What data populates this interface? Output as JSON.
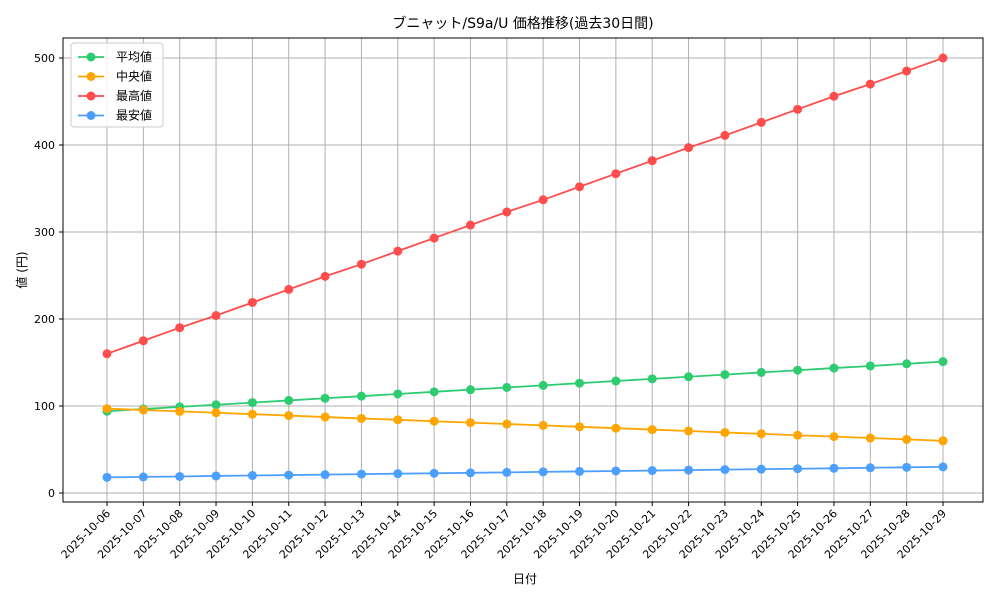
{
  "chart_data": {
    "type": "line",
    "title": "ブニャット/S9a/U 価格推移(過去30日間)",
    "xlabel": "日付",
    "ylabel": "値 (円)",
    "ylim": [
      -6,
      523
    ],
    "yticks": [
      0,
      100,
      200,
      300,
      400,
      500
    ],
    "grid": true,
    "legend_position": "top-left",
    "x": [
      "2025-10-06",
      "2025-10-07",
      "2025-10-08",
      "2025-10-09",
      "2025-10-10",
      "2025-10-11",
      "2025-10-12",
      "2025-10-13",
      "2025-10-14",
      "2025-10-15",
      "2025-10-16",
      "2025-10-17",
      "2025-10-18",
      "2025-10-19",
      "2025-10-20",
      "2025-10-21",
      "2025-10-22",
      "2025-10-23",
      "2025-10-24",
      "2025-10-25",
      "2025-10-26",
      "2025-10-27",
      "2025-10-28",
      "2025-10-29"
    ],
    "series": [
      {
        "name": "平均値",
        "color": "#2ecc71",
        "values": [
          94,
          96.5,
          99,
          101.4,
          103.9,
          106.4,
          108.9,
          111.3,
          113.8,
          116.3,
          118.8,
          121.3,
          123.7,
          126.2,
          128.7,
          131.2,
          133.6,
          136.1,
          138.6,
          141.1,
          143.6,
          146,
          148.5,
          151
        ]
      },
      {
        "name": "中央値",
        "color": "#ffa500",
        "values": [
          97,
          95.4,
          93.8,
          92.2,
          90.6,
          89,
          87.3,
          85.7,
          84.1,
          82.5,
          80.9,
          79.3,
          77.7,
          76.1,
          74.5,
          72.9,
          71.3,
          69.6,
          68,
          66.4,
          64.8,
          63.2,
          61.6,
          60
        ]
      },
      {
        "name": "最高値",
        "color": "#ff4d4d",
        "values": [
          160,
          175,
          190,
          204,
          219,
          234,
          249,
          263,
          278,
          293,
          308,
          323,
          337,
          352,
          367,
          382,
          397,
          411,
          426,
          441,
          456,
          470,
          485,
          500
        ]
      },
      {
        "name": "最安値",
        "color": "#4d9fff",
        "values": [
          18,
          18.5,
          19,
          19.6,
          20.1,
          20.6,
          21.1,
          21.7,
          22.2,
          22.7,
          23.2,
          23.7,
          24.3,
          24.8,
          25.3,
          25.8,
          26.3,
          26.9,
          27.4,
          27.9,
          28.4,
          29,
          29.5,
          30
        ]
      }
    ]
  }
}
